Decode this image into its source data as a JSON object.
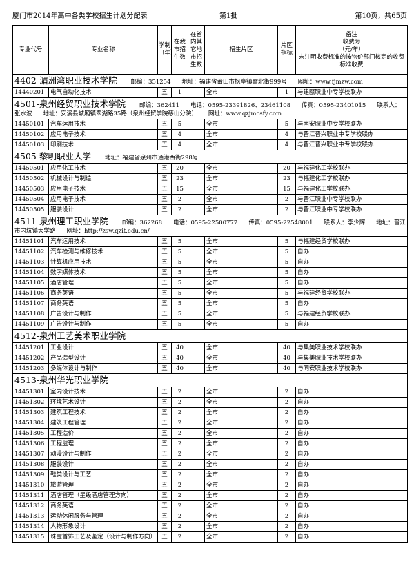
{
  "header": {
    "title": "厦门市2014年高中各类学校招生计划分配表",
    "batch": "第1批",
    "page": "第10页，共65页"
  },
  "table": {
    "columns": [
      "专业代号",
      "专业名称",
      "学制（年）",
      "在我市招生数",
      "在省内其它地市招生数",
      "招生片区",
      "片区指标"
    ],
    "remark_header": [
      "备注",
      "收费为",
      "（元/年）",
      "未注明收费标准的按物价部门核定的收费标准收费"
    ],
    "sections": [
      {
        "title": "4402-湄洲湾职业技术学院",
        "info": [
          "邮编：351254",
          "地址：福建省莆田市枫亭镇霞北街999号",
          "网址：www.fjmzw.com"
        ],
        "rows": [
          {
            "code": "14440201",
            "name": "电气自动化技术",
            "years": "五",
            "local": 1,
            "area": "全市",
            "quota": 1,
            "remark": "与建瓯职业中专学校联办"
          }
        ]
      },
      {
        "title": "4501-泉州经贸职业技术学院",
        "info": [
          "邮编：362411",
          "电话：0595-23391826、23461108",
          "传真：0595-23401015",
          "联系人：张水波",
          "地址：安溪县城厢镇翠湖路35路（泉州经贸学院慈山分院）",
          "网址：www.qzjmcsfy.com"
        ],
        "rows": [
          {
            "code": "14450101",
            "name": "汽车运用技术",
            "years": "五",
            "local": 5,
            "area": "全市",
            "quota": 5,
            "remark": "与南安职业中专学校联办"
          },
          {
            "code": "14450102",
            "name": "应用电子技术",
            "years": "五",
            "local": 4,
            "area": "全市",
            "quota": 4,
            "remark": "与晋江晋兴职业中专学校联办"
          },
          {
            "code": "14450103",
            "name": "印刷技术",
            "years": "五",
            "local": 4,
            "area": "全市",
            "quota": 4,
            "remark": "与晋江晋兴职业中专学校联办"
          }
        ]
      },
      {
        "title": "4505-黎明职业大学",
        "info": [
          "地址：福建省泉州市通港西街298号"
        ],
        "rows": [
          {
            "code": "14450501",
            "name": "应用化工技术",
            "years": "五",
            "local": 20,
            "area": "全市",
            "quota": 20,
            "remark": "与福建化工学校联办"
          },
          {
            "code": "14450502",
            "name": "机械设计与制造",
            "years": "五",
            "local": 23,
            "area": "全市",
            "quota": 23,
            "remark": "与福建化工学校联办"
          },
          {
            "code": "14450503",
            "name": "应用电子技术",
            "years": "五",
            "local": 15,
            "area": "全市",
            "quota": 15,
            "remark": "与福建化工学校联办"
          },
          {
            "code": "14450504",
            "name": "应用电子技术",
            "years": "五",
            "local": 2,
            "area": "全市",
            "quota": 2,
            "remark": "与晋江职业中专学校联办"
          },
          {
            "code": "14450505",
            "name": "服装设计",
            "years": "五",
            "local": 2,
            "area": "全市",
            "quota": 2,
            "remark": "与晋江职业中专学校联办"
          }
        ]
      },
      {
        "title": "4511-泉州理工职业学院",
        "info": [
          "邮编：362268",
          "电话：0595-22500777",
          "传真：0595-22548001",
          "联系人：李少辉",
          "地址：晋江市内坑镇大学路",
          "网址：http://zsw.qzit.edu.cn/"
        ],
        "rows": [
          {
            "code": "14451101",
            "name": "汽车运用技术",
            "years": "五",
            "local": 5,
            "area": "全市",
            "quota": 5,
            "remark": "与福建经贸学校联办"
          },
          {
            "code": "14451102",
            "name": "汽车检测与维修技术",
            "years": "五",
            "local": 5,
            "area": "全市",
            "quota": 5,
            "remark": "自办"
          },
          {
            "code": "14451103",
            "name": "计算机应用技术",
            "years": "五",
            "local": 5,
            "area": "全市",
            "quota": 5,
            "remark": "自办"
          },
          {
            "code": "14451104",
            "name": "数字媒体技术",
            "years": "五",
            "local": 5,
            "area": "全市",
            "quota": 5,
            "remark": "自办"
          },
          {
            "code": "14451105",
            "name": "酒店管理",
            "years": "五",
            "local": 5,
            "area": "全市",
            "quota": 5,
            "remark": "自办"
          },
          {
            "code": "14451106",
            "name": "商务英语",
            "years": "五",
            "local": 5,
            "area": "全市",
            "quota": 5,
            "remark": "与福建经贸学校联办"
          },
          {
            "code": "14451107",
            "name": "商务英语",
            "years": "五",
            "local": 5,
            "area": "全市",
            "quota": 5,
            "remark": "自办"
          },
          {
            "code": "14451108",
            "name": "广告设计与制作",
            "years": "五",
            "local": 5,
            "area": "全市",
            "quota": 5,
            "remark": "与福建经贸学校联办"
          },
          {
            "code": "14451109",
            "name": "广告设计与制作",
            "years": "五",
            "local": 5,
            "area": "全市",
            "quota": 5,
            "remark": "自办"
          }
        ]
      },
      {
        "title": "4512-泉州工艺美术职业学院",
        "info": [],
        "rows": [
          {
            "code": "14451201",
            "name": "工业设计",
            "years": "五",
            "local": 40,
            "area": "全市",
            "quota": 40,
            "remark": "与集美职业技术学校联办"
          },
          {
            "code": "14451202",
            "name": "产品造型设计",
            "years": "五",
            "local": 40,
            "area": "全市",
            "quota": 40,
            "remark": "与集美职业技术学校联办"
          },
          {
            "code": "14451203",
            "name": "多媒体设计与制作",
            "years": "五",
            "local": 40,
            "area": "全市",
            "quota": 40,
            "remark": "与同安职业技术学校联办"
          }
        ]
      },
      {
        "title": "4513-泉州华光职业学院",
        "info": [],
        "rows": [
          {
            "code": "14451301",
            "name": "室内设计技术",
            "years": "五",
            "local": 2,
            "area": "全市",
            "quota": 2,
            "remark": "自办"
          },
          {
            "code": "14451302",
            "name": "环境艺术设计",
            "years": "五",
            "local": 2,
            "area": "全市",
            "quota": 2,
            "remark": "自办"
          },
          {
            "code": "14451303",
            "name": "建筑工程技术",
            "years": "五",
            "local": 2,
            "area": "全市",
            "quota": 2,
            "remark": "自办"
          },
          {
            "code": "14451304",
            "name": "建筑工程管理",
            "years": "五",
            "local": 2,
            "area": "全市",
            "quota": 2,
            "remark": "自办"
          },
          {
            "code": "14451305",
            "name": "工程造价",
            "years": "五",
            "local": 2,
            "area": "全市",
            "quota": 2,
            "remark": "自办"
          },
          {
            "code": "14451306",
            "name": "工程监理",
            "years": "五",
            "local": 2,
            "area": "全市",
            "quota": 2,
            "remark": "自办"
          },
          {
            "code": "14451307",
            "name": "动漫设计与制作",
            "years": "五",
            "local": 2,
            "area": "全市",
            "quota": 2,
            "remark": "自办"
          },
          {
            "code": "14451308",
            "name": "服装设计",
            "years": "五",
            "local": 2,
            "area": "全市",
            "quota": 2,
            "remark": "自办"
          },
          {
            "code": "14451309",
            "name": "鞋类设计与工艺",
            "years": "五",
            "local": 2,
            "area": "全市",
            "quota": 2,
            "remark": "自办"
          },
          {
            "code": "14451310",
            "name": "旅游管理",
            "years": "五",
            "local": 2,
            "area": "全市",
            "quota": 2,
            "remark": "自办"
          },
          {
            "code": "14451311",
            "name": "酒店管理（星级酒店管理方向）",
            "years": "五",
            "local": 2,
            "area": "全市",
            "quota": 2,
            "remark": "自办"
          },
          {
            "code": "14451312",
            "name": "商务英语",
            "years": "五",
            "local": 2,
            "area": "全市",
            "quota": 2,
            "remark": "自办"
          },
          {
            "code": "14451313",
            "name": "运动休闲服务与管理",
            "years": "五",
            "local": 2,
            "area": "全市",
            "quota": 2,
            "remark": "自办"
          },
          {
            "code": "14451314",
            "name": "人物形象设计",
            "years": "五",
            "local": 2,
            "area": "全市",
            "quota": 2,
            "remark": "自办"
          },
          {
            "code": "14451315",
            "name": "珠宝首饰工艺及鉴定（设计与制作方向）",
            "years": "五",
            "local": 2,
            "area": "全市",
            "quota": 2,
            "remark": "自办"
          }
        ]
      }
    ]
  }
}
